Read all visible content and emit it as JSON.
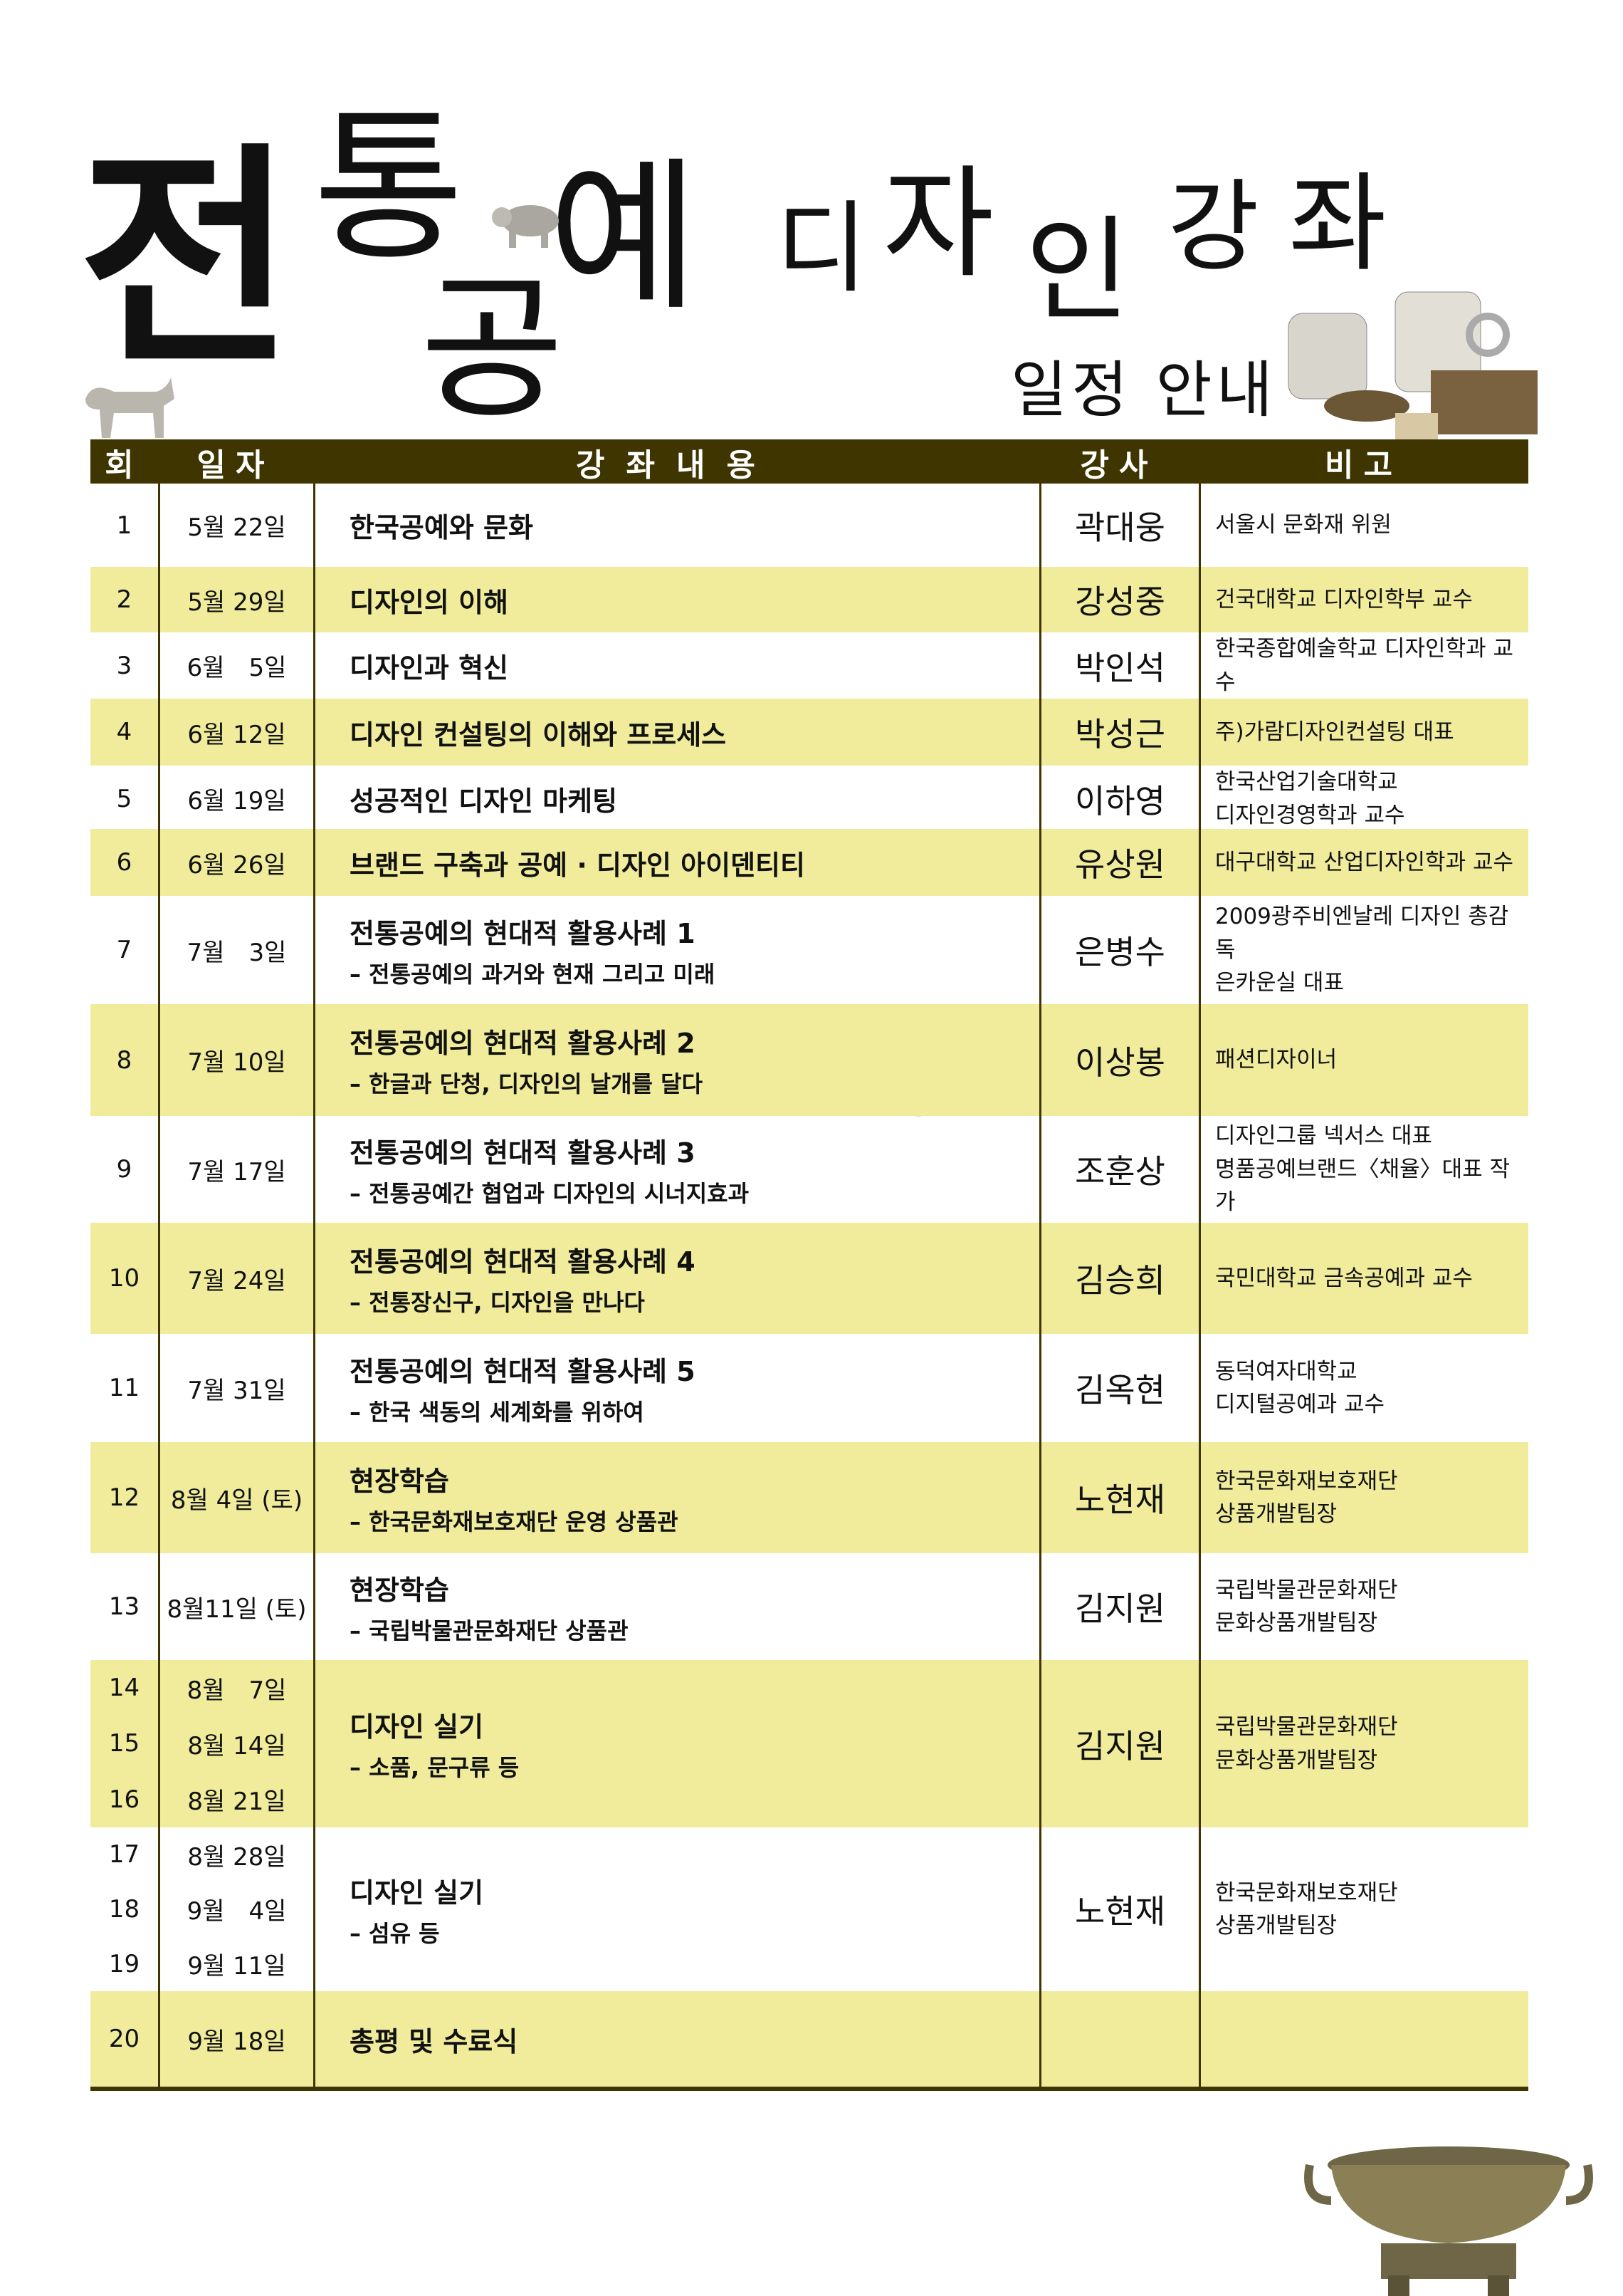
{
  "title": {
    "chars": [
      "전",
      "통",
      "공",
      "예",
      "디",
      "자",
      "인",
      "강",
      "좌"
    ],
    "subtitle": "일정 안내"
  },
  "header": {
    "no": "회",
    "date": "일자",
    "content": "강좌내용",
    "lecturer": "강사",
    "note": "비고"
  },
  "colors": {
    "header_bg": "#3f3500",
    "row_highlight": "#f0ec9c"
  },
  "rows": [
    {
      "nums": [
        "1"
      ],
      "dates": [
        "5월 22일"
      ],
      "title": "한국공예와 문화",
      "sub": "",
      "lecturer": "곽대웅",
      "note": [
        "서울시 문화재 위원"
      ],
      "highlight": false
    },
    {
      "nums": [
        "2"
      ],
      "dates": [
        "5월 29일"
      ],
      "title": "디자인의 이해",
      "sub": "",
      "lecturer": "강성중",
      "note": [
        "건국대학교 디자인학부 교수"
      ],
      "highlight": true
    },
    {
      "nums": [
        "3"
      ],
      "dates": [
        "6월　5일"
      ],
      "title": "디자인과 혁신",
      "sub": "",
      "lecturer": "박인석",
      "note": [
        "한국종합예술학교 디자인학과 교수"
      ],
      "highlight": false
    },
    {
      "nums": [
        "4"
      ],
      "dates": [
        "6월 12일"
      ],
      "title": "디자인 컨설팅의 이해와 프로세스",
      "sub": "",
      "lecturer": "박성근",
      "note": [
        "주)가람디자인컨설팅 대표"
      ],
      "highlight": true
    },
    {
      "nums": [
        "5"
      ],
      "dates": [
        "6월 19일"
      ],
      "title": "성공적인 디자인 마케팅",
      "sub": "",
      "lecturer": "이하영",
      "note": [
        "한국산업기술대학교",
        "디자인경영학과 교수"
      ],
      "highlight": false
    },
    {
      "nums": [
        "6"
      ],
      "dates": [
        "6월 26일"
      ],
      "title": "브랜드 구축과 공예 · 디자인 아이덴티티",
      "sub": "",
      "lecturer": "유상원",
      "note": [
        "대구대학교 산업디자인학과 교수"
      ],
      "highlight": true
    },
    {
      "nums": [
        "7"
      ],
      "dates": [
        "7월　3일"
      ],
      "title": "전통공예의 현대적 활용사례 1",
      "sub": "– 전통공예의 과거와 현재 그리고 미래",
      "lecturer": "은병수",
      "note": [
        "2009광주비엔날레 디자인 총감독",
        "은카운실 대표"
      ],
      "highlight": false
    },
    {
      "nums": [
        "8"
      ],
      "dates": [
        "7월 10일"
      ],
      "title": "전통공예의 현대적 활용사례 2",
      "sub": "– 한글과 단청, 디자인의 날개를 달다",
      "lecturer": "이상봉",
      "note": [
        "패션디자이너"
      ],
      "highlight": true
    },
    {
      "nums": [
        "9"
      ],
      "dates": [
        "7월 17일"
      ],
      "title": "전통공예의 현대적 활용사례 3",
      "sub": "– 전통공예간 협업과 디자인의 시너지효과",
      "lecturer": "조훈상",
      "note": [
        "디자인그룹 넥서스 대표",
        "명품공예브랜드〈채율〉대표 작가"
      ],
      "highlight": false
    },
    {
      "nums": [
        "10"
      ],
      "dates": [
        "7월 24일"
      ],
      "title": "전통공예의 현대적 활용사례 4",
      "sub": "– 전통장신구, 디자인을 만나다",
      "lecturer": "김승희",
      "note": [
        "국민대학교 금속공예과 교수"
      ],
      "highlight": true
    },
    {
      "nums": [
        "11"
      ],
      "dates": [
        "7월 31일"
      ],
      "title": "전통공예의 현대적 활용사례 5",
      "sub": "– 한국 색동의 세계화를 위하여",
      "lecturer": "김옥현",
      "note": [
        "동덕여자대학교",
        "디지털공예과 교수"
      ],
      "highlight": false
    },
    {
      "nums": [
        "12"
      ],
      "dates": [
        "8월 4일 (토)"
      ],
      "title": "현장학습",
      "sub": "– 한국문화재보호재단 운영 상품관",
      "lecturer": "노현재",
      "note": [
        "한국문화재보호재단",
        "상품개발팀장"
      ],
      "highlight": true
    },
    {
      "nums": [
        "13"
      ],
      "dates": [
        "8월11일 (토)"
      ],
      "title": "현장학습",
      "sub": "– 국립박물관문화재단 상품관",
      "lecturer": "김지원",
      "note": [
        "국립박물관문화재단",
        "문화상품개발팀장"
      ],
      "highlight": false
    },
    {
      "nums": [
        "14",
        "15",
        "16"
      ],
      "dates": [
        "8월　7일",
        "8월 14일",
        "8월 21일"
      ],
      "title": "디자인 실기",
      "sub": "– 소품, 문구류 등",
      "lecturer": "김지원",
      "note": [
        "국립박물관문화재단",
        "문화상품개발팀장"
      ],
      "highlight": true
    },
    {
      "nums": [
        "17",
        "18",
        "19"
      ],
      "dates": [
        "8월 28일",
        "9월　4일",
        "9월 11일"
      ],
      "title": "디자인 실기",
      "sub": "– 섬유 등",
      "lecturer": "노현재",
      "note": [
        "한국문화재보호재단",
        "상품개발팀장"
      ],
      "highlight": false
    },
    {
      "nums": [
        "20"
      ],
      "dates": [
        "9월 18일"
      ],
      "title": "총평 및 수료식",
      "sub": "",
      "lecturer": "",
      "note": [],
      "highlight": true
    }
  ]
}
